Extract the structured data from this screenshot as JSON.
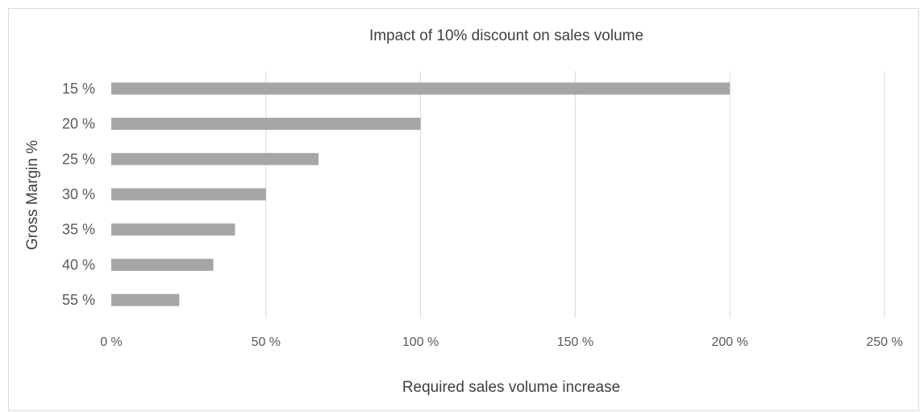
{
  "chart_data": {
    "type": "bar",
    "orientation": "horizontal",
    "title": "Impact of 10% discount on sales volume",
    "xlabel": "Required sales volume increase",
    "ylabel": "Gross Margin %",
    "categories": [
      "15 %",
      "20 %",
      "25 %",
      "30 %",
      "35 %",
      "40 %",
      "55 %"
    ],
    "values": [
      200,
      100,
      67,
      50,
      40,
      33,
      22
    ],
    "xlim": [
      0,
      250
    ],
    "xticks": [
      0,
      50,
      100,
      150,
      200,
      250
    ],
    "xtick_labels": [
      "0 %",
      "50 %",
      "100 %",
      "150 %",
      "200 %",
      "250 %"
    ],
    "grid": "vertical",
    "legend": "none",
    "bar_color": "#a6a6a6"
  }
}
